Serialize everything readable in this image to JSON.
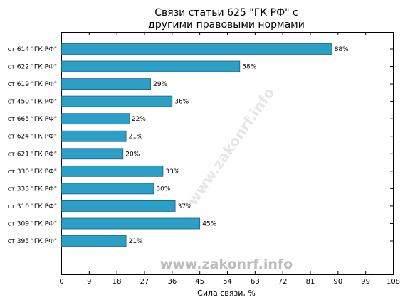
{
  "chart_data": {
    "type": "bar",
    "orientation": "horizontal",
    "title_lines": [
      "Связи статьи 625 \"ГК РФ\" с",
      "другими правовыми нормами"
    ],
    "xlabel": "Сила связи, %",
    "ylabel": "",
    "xlim": [
      0,
      108
    ],
    "xticks": [
      "0",
      "9",
      "18",
      "27",
      "36",
      "45",
      "54",
      "63",
      "72",
      "81",
      "90",
      "99",
      "108"
    ],
    "categories": [
      "ст 614 \"ГК РФ\"",
      "ст 622 \"ГК РФ\"",
      "ст 619 \"ГК РФ\"",
      "ст 450 \"ГК РФ\"",
      "ст 665 \"ГК РФ\"",
      "ст 624 \"ГК РФ\"",
      "ст 621 \"ГК РФ\"",
      "ст 330 \"ГК РФ\"",
      "ст 333 \"ГК РФ\"",
      "ст 310 \"ГК РФ\"",
      "ст 309 \"ГК РФ\"",
      "ст 395 \"ГК РФ\""
    ],
    "values": [
      88,
      58,
      29,
      36,
      22,
      21,
      20,
      33,
      30,
      37,
      45,
      21
    ],
    "data_labels": [
      "88%",
      "58%",
      "29%",
      "36%",
      "22%",
      "21%",
      "20%",
      "33%",
      "30%",
      "37%",
      "45%",
      "21%"
    ],
    "grid": false,
    "bar_color": "#2b9fc6",
    "watermark": "www.zakonrf.info"
  }
}
